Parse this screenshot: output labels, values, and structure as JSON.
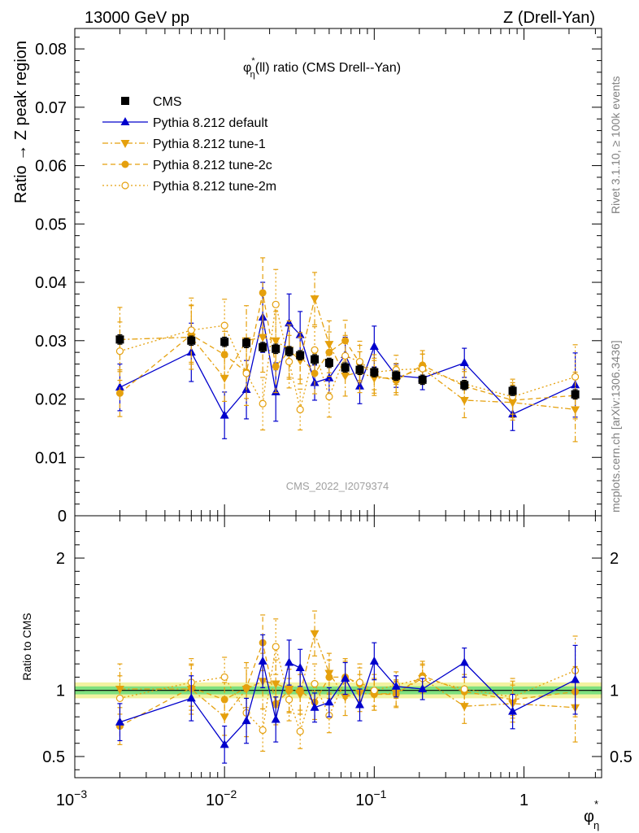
{
  "header": {
    "left": "13000 GeV pp",
    "right": "Z (Drell-Yan)"
  },
  "side_text": {
    "rivet": "Rivet 3.1.10, ≥ 100k events",
    "mcplots": "mcplots.cern.ch [arXiv:1306.3436]"
  },
  "watermark": "CMS_2022_I2079374",
  "colors": {
    "cms": "#000000",
    "default": "#0000cc",
    "tune": "#e5a00d",
    "band_inner": "#7ee07e",
    "band_outer": "#f2f2a0"
  },
  "chart_data": [
    {
      "type": "scatter",
      "title": "φ*η(ll) ratio (CMS Drell--Yan)",
      "title_main": "φ",
      "title_sup": "*",
      "title_sub": "η",
      "title_rest": "(ll) ratio (CMS Drell--Yan)",
      "xlabel_main": "φ",
      "xlabel_sup": "*",
      "xlabel_sub": "η",
      "ylabel": "Ratio → Z peak region",
      "xscale": "log",
      "xlim": [
        0.001,
        3.3
      ],
      "ylim": [
        0,
        0.0835
      ],
      "x_tick_labels": [
        {
          "x": 0.001,
          "base": "10",
          "exp": "−3"
        },
        {
          "x": 0.01,
          "base": "10",
          "exp": "−2"
        },
        {
          "x": 0.1,
          "base": "10",
          "exp": "−1"
        },
        {
          "x": 1,
          "base": "1",
          "exp": ""
        }
      ],
      "y_ticks": [
        {
          "v": 0,
          "label": "0"
        },
        {
          "v": 0.01,
          "label": "0.01"
        },
        {
          "v": 0.02,
          "label": "0.02"
        },
        {
          "v": 0.03,
          "label": "0.03"
        },
        {
          "v": 0.04,
          "label": "0.04"
        },
        {
          "v": 0.05,
          "label": "0.05"
        },
        {
          "v": 0.06,
          "label": "0.06"
        },
        {
          "v": 0.07,
          "label": "0.07"
        },
        {
          "v": 0.08,
          "label": "0.08"
        }
      ],
      "legend_position": "top-left",
      "x": [
        0.002,
        0.006,
        0.01,
        0.014,
        0.018,
        0.022,
        0.027,
        0.032,
        0.04,
        0.05,
        0.064,
        0.08,
        0.1,
        0.14,
        0.21,
        0.4,
        0.84,
        2.2
      ],
      "series": [
        {
          "name": "CMS",
          "marker": "square-filled",
          "line": "none",
          "y": [
            0.0302,
            0.03,
            0.0298,
            0.0296,
            0.0289,
            0.0286,
            0.0282,
            0.0275,
            0.0268,
            0.0262,
            0.0254,
            0.025,
            0.0246,
            0.024,
            0.0233,
            0.0224,
            0.0214,
            0.0208
          ],
          "err": [
            0.0008,
            0.0008,
            0.0008,
            0.0008,
            0.0008,
            0.0008,
            0.0008,
            0.0008,
            0.0008,
            0.0008,
            0.0008,
            0.0008,
            0.0008,
            0.0008,
            0.0008,
            0.0008,
            0.0008,
            0.0008
          ]
        },
        {
          "name": "Pythia 8.212 default",
          "marker": "triangle-up-filled",
          "line": "solid",
          "y": [
            0.022,
            0.028,
            0.0172,
            0.0216,
            0.034,
            0.0212,
            0.033,
            0.031,
            0.0228,
            0.0236,
            0.0276,
            0.0222,
            0.029,
            0.024,
            0.0236,
            0.0262,
            0.0174,
            0.0224
          ],
          "err": [
            0.004,
            0.005,
            0.004,
            0.005,
            0.006,
            0.005,
            0.005,
            0.004,
            0.003,
            0.003,
            0.003,
            0.003,
            0.0035,
            0.002,
            0.002,
            0.0025,
            0.0028,
            0.0055
          ]
        },
        {
          "name": "Pythia 8.212 tune-1",
          "marker": "triangle-down-filled",
          "line": "dashdot",
          "y": [
            0.0302,
            0.0306,
            0.0236,
            0.03,
            0.0306,
            0.03,
            0.0284,
            0.0266,
            0.0372,
            0.0294,
            0.024,
            0.0246,
            0.0236,
            0.0236,
            0.0252,
            0.0198,
            0.0194,
            0.0182
          ],
          "err": [
            0.0055,
            0.0055,
            0.004,
            0.006,
            0.006,
            0.005,
            0.005,
            0.004,
            0.0045,
            0.004,
            0.0035,
            0.0035,
            0.003,
            0.0025,
            0.0025,
            0.003,
            0.003,
            0.0055
          ]
        },
        {
          "name": "Pythia 8.212 tune-2c",
          "marker": "circle-filled",
          "line": "dashed",
          "y": [
            0.021,
            0.031,
            0.0276,
            0.0246,
            0.0382,
            0.0256,
            0.0282,
            0.0274,
            0.0244,
            0.028,
            0.03,
            0.0262,
            0.024,
            0.0232,
            0.0258,
            0.0222,
            0.0198,
            0.0206
          ],
          "err": [
            0.004,
            0.005,
            0.004,
            0.0045,
            0.006,
            0.0045,
            0.0045,
            0.004,
            0.0035,
            0.0035,
            0.0035,
            0.003,
            0.003,
            0.0025,
            0.0025,
            0.0025,
            0.003,
            0.004
          ]
        },
        {
          "name": "Pythia 8.212 tune-2m",
          "marker": "circle-open",
          "line": "dotted",
          "y": [
            0.0282,
            0.0318,
            0.0326,
            0.0244,
            0.0192,
            0.0362,
            0.0264,
            0.0182,
            0.0284,
            0.0204,
            0.0274,
            0.0264,
            0.0246,
            0.025,
            0.0252,
            0.0226,
            0.0204,
            0.0238
          ],
          "err": [
            0.005,
            0.0055,
            0.0045,
            0.0055,
            0.0045,
            0.006,
            0.0045,
            0.0035,
            0.004,
            0.0035,
            0.0035,
            0.0035,
            0.003,
            0.0025,
            0.0025,
            0.0025,
            0.003,
            0.0055
          ]
        }
      ]
    },
    {
      "type": "scatter",
      "ylabel": "Ratio to CMS",
      "xscale": "log",
      "xlim": [
        0.001,
        3.3
      ],
      "ylim": [
        0.34,
        2.32
      ],
      "y_ticks": [
        {
          "v": 0.5,
          "label": "0.5"
        },
        {
          "v": 1,
          "label": "1"
        },
        {
          "v": 2,
          "label": "2"
        }
      ],
      "reference": 1,
      "band_inner": [
        0.97,
        1.03
      ],
      "band_outer": [
        0.94,
        1.06
      ],
      "x": [
        0.002,
        0.006,
        0.01,
        0.014,
        0.018,
        0.022,
        0.027,
        0.032,
        0.04,
        0.05,
        0.064,
        0.08,
        0.1,
        0.14,
        0.21,
        0.4,
        0.84,
        2.2
      ],
      "series": [
        {
          "name": "Pythia 8.212 default",
          "y": [
            0.76,
            0.94,
            0.59,
            0.77,
            1.22,
            0.78,
            1.21,
            1.17,
            0.87,
            0.91,
            1.09,
            0.89,
            1.22,
            1.03,
            1.01,
            1.21,
            0.84,
            1.08
          ],
          "err": [
            0.14,
            0.17,
            0.14,
            0.17,
            0.2,
            0.17,
            0.17,
            0.14,
            0.11,
            0.11,
            0.12,
            0.12,
            0.14,
            0.08,
            0.08,
            0.11,
            0.13,
            0.26
          ]
        },
        {
          "name": "Pythia 8.212 tune-1",
          "y": [
            1.01,
            1.01,
            0.8,
            1.01,
            1.07,
            1.05,
            1.01,
            0.97,
            1.43,
            1.13,
            0.95,
            0.98,
            0.97,
            0.98,
            1.09,
            0.88,
            0.9,
            0.87
          ],
          "err": [
            0.19,
            0.19,
            0.14,
            0.2,
            0.21,
            0.18,
            0.18,
            0.15,
            0.17,
            0.15,
            0.14,
            0.14,
            0.12,
            0.1,
            0.1,
            0.13,
            0.14,
            0.26
          ]
        },
        {
          "name": "Pythia 8.212 tune-2c",
          "y": [
            0.73,
            1.02,
            0.93,
            1.02,
            1.36,
            0.9,
            1.0,
            1.0,
            0.91,
            1.1,
            1.1,
            1.05,
            0.97,
            0.97,
            1.11,
            0.99,
            0.93,
            0.99
          ],
          "err": [
            0.14,
            0.17,
            0.13,
            0.15,
            0.21,
            0.16,
            0.16,
            0.15,
            0.13,
            0.13,
            0.14,
            0.12,
            0.12,
            0.1,
            0.11,
            0.11,
            0.14,
            0.19
          ]
        },
        {
          "name": "Pythia 8.212 tune-2m",
          "y": [
            0.94,
            1.06,
            1.1,
            0.83,
            0.7,
            1.33,
            0.93,
            0.69,
            1.05,
            0.81,
            1.08,
            1.06,
            1.0,
            1.04,
            1.09,
            1.01,
            0.95,
            1.15
          ],
          "err": [
            0.17,
            0.18,
            0.15,
            0.18,
            0.16,
            0.21,
            0.16,
            0.13,
            0.15,
            0.13,
            0.14,
            0.14,
            0.12,
            0.1,
            0.11,
            0.11,
            0.14,
            0.26
          ]
        }
      ]
    }
  ]
}
